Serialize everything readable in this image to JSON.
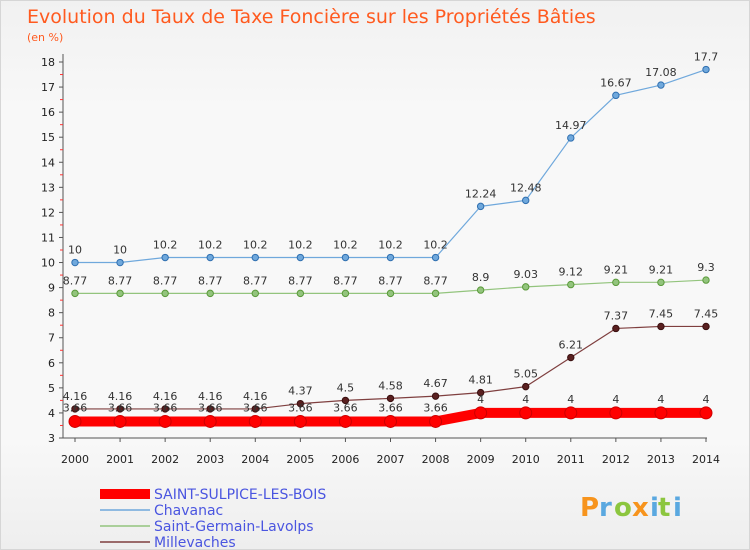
{
  "chart_data": {
    "type": "line",
    "title": "Evolution du Taux de Taxe Foncière sur les Propriétés Bâties",
    "subtitle": "(en %)",
    "xlabel": "",
    "ylabel": "",
    "x": [
      "2000",
      "2001",
      "2002",
      "2003",
      "2004",
      "2005",
      "2006",
      "2007",
      "2008",
      "2009",
      "2010",
      "2011",
      "2012",
      "2013",
      "2014"
    ],
    "ylim": [
      3,
      18
    ],
    "yticks": [
      "3",
      "4",
      "5",
      "6",
      "7",
      "8",
      "9",
      "10",
      "11",
      "12",
      "13",
      "14",
      "15",
      "16",
      "17",
      "18"
    ],
    "grid": false,
    "legend_position": "bottom-left",
    "series": [
      {
        "name": "SAINT-SULPICE-LES-BOIS",
        "color": "#ff0000",
        "values": [
          3.66,
          3.66,
          3.66,
          3.66,
          3.66,
          3.66,
          3.66,
          3.66,
          3.66,
          4,
          4,
          4,
          4,
          4,
          4
        ],
        "labels": [
          "3.66",
          "3.66",
          "3.66",
          "3.66",
          "3.66",
          "3.66",
          "3.66",
          "3.66",
          "3.66",
          "4",
          "4",
          "4",
          "4",
          "4",
          "4"
        ]
      },
      {
        "name": "Chavanac",
        "color": "#6fa8dc",
        "values": [
          10,
          10,
          10.2,
          10.2,
          10.2,
          10.2,
          10.2,
          10.2,
          10.2,
          12.24,
          12.48,
          14.97,
          16.67,
          17.08,
          17.7
        ],
        "labels": [
          "10",
          "10",
          "10.2",
          "10.2",
          "10.2",
          "10.2",
          "10.2",
          "10.2",
          "10.2",
          "12.24",
          "12.48",
          "14.97",
          "16.67",
          "17.08",
          "17.7"
        ]
      },
      {
        "name": "Saint-Germain-Lavolps",
        "color": "#93c47d",
        "values": [
          8.77,
          8.77,
          8.77,
          8.77,
          8.77,
          8.77,
          8.77,
          8.77,
          8.77,
          8.9,
          9.03,
          9.12,
          9.21,
          9.21,
          9.3
        ],
        "labels": [
          "8.77",
          "8.77",
          "8.77",
          "8.77",
          "8.77",
          "8.77",
          "8.77",
          "8.77",
          "8.77",
          "8.9",
          "9.03",
          "9.12",
          "9.21",
          "9.21",
          "9.3"
        ]
      },
      {
        "name": "Millevaches",
        "color": "#7f3f3f",
        "values": [
          4.16,
          4.16,
          4.16,
          4.16,
          4.16,
          4.37,
          4.5,
          4.58,
          4.67,
          4.81,
          5.05,
          6.21,
          7.37,
          7.45,
          7.45
        ],
        "labels": [
          "4.16",
          "4.16",
          "4.16",
          "4.16",
          "4.16",
          "4.37",
          "4.5",
          "4.58",
          "4.67",
          "4.81",
          "5.05",
          "6.21",
          "7.37",
          "7.45",
          "7.45"
        ]
      }
    ]
  },
  "brand": {
    "letters": [
      "P",
      "r",
      "o",
      "x",
      "i",
      "t",
      "i"
    ]
  }
}
